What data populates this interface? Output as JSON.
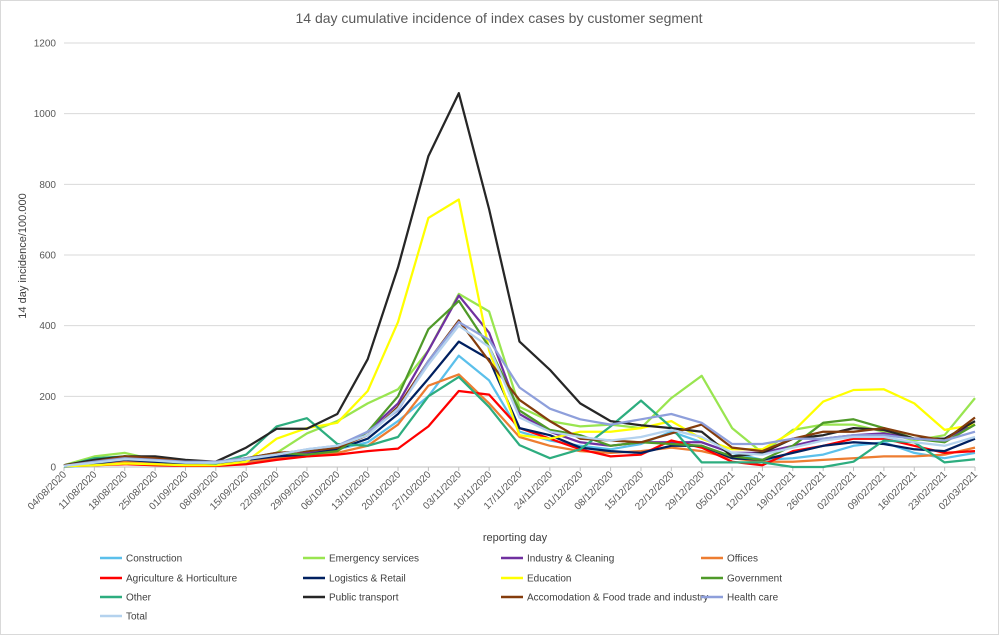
{
  "chart_data": {
    "type": "line",
    "title": "14 day cumulative incidence of index cases by customer segment",
    "xlabel": "reporting day",
    "ylabel": "14 day incidence/100.000",
    "ylim": [
      0,
      1200
    ],
    "yticks": [
      0,
      200,
      400,
      600,
      800,
      1000,
      1200
    ],
    "grid": true,
    "legend_position": "bottom",
    "categories": [
      "04/08/2020",
      "11/08/2020",
      "18/08/2020",
      "25/08/2020",
      "01/09/2020",
      "08/09/2020",
      "15/09/2020",
      "22/09/2020",
      "29/09/2020",
      "06/10/2020",
      "13/10/2020",
      "20/10/2020",
      "27/10/2020",
      "03/11/2020",
      "10/11/2020",
      "17/11/2020",
      "24/11/2020",
      "01/12/2020",
      "08/12/2020",
      "15/12/2020",
      "22/12/2020",
      "29/12/2020",
      "05/01/2021",
      "12/01/2021",
      "19/01/2021",
      "26/01/2021",
      "02/02/2021",
      "09/02/2021",
      "16/02/2021",
      "23/02/2021",
      "02/03/2021"
    ],
    "series": [
      {
        "name": "Construction",
        "color": "#5bc0eb",
        "values": [
          0,
          5,
          10,
          8,
          5,
          5,
          10,
          25,
          40,
          50,
          70,
          130,
          200,
          315,
          245,
          100,
          75,
          60,
          50,
          65,
          100,
          70,
          40,
          20,
          25,
          35,
          60,
          70,
          40,
          25,
          40
        ]
      },
      {
        "name": "Emergency services",
        "color": "#99e550",
        "values": [
          5,
          30,
          40,
          20,
          10,
          10,
          20,
          40,
          95,
          130,
          180,
          220,
          330,
          490,
          440,
          170,
          130,
          115,
          120,
          110,
          195,
          258,
          110,
          40,
          105,
          120,
          120,
          100,
          75,
          90,
          195
        ]
      },
      {
        "name": "Industry & Cleaning",
        "color": "#7030a0",
        "values": [
          5,
          10,
          20,
          15,
          10,
          10,
          20,
          30,
          40,
          50,
          100,
          180,
          330,
          485,
          380,
          150,
          100,
          70,
          60,
          70,
          70,
          70,
          40,
          40,
          60,
          80,
          90,
          95,
          80,
          80,
          120
        ]
      },
      {
        "name": "Offices",
        "color": "#ed7d31",
        "values": [
          3,
          8,
          15,
          10,
          8,
          8,
          15,
          25,
          30,
          40,
          60,
          120,
          230,
          262,
          180,
          85,
          60,
          45,
          40,
          45,
          55,
          45,
          25,
          15,
          15,
          20,
          25,
          30,
          30,
          35,
          55
        ]
      },
      {
        "name": "Agriculture & Horticulture",
        "color": "#ff0000",
        "values": [
          2,
          5,
          8,
          5,
          3,
          3,
          8,
          20,
          30,
          35,
          45,
          52,
          115,
          215,
          205,
          110,
          80,
          50,
          30,
          35,
          75,
          55,
          15,
          5,
          45,
          60,
          80,
          80,
          60,
          40,
          45
        ]
      },
      {
        "name": "Logistics & Retail",
        "color": "#002060",
        "values": [
          4,
          10,
          20,
          15,
          10,
          10,
          20,
          30,
          35,
          50,
          80,
          150,
          250,
          355,
          305,
          110,
          90,
          55,
          45,
          40,
          60,
          60,
          25,
          20,
          40,
          60,
          70,
          65,
          50,
          45,
          80
        ]
      },
      {
        "name": "Education",
        "color": "#ffff00",
        "values": [
          2,
          5,
          10,
          8,
          5,
          5,
          15,
          80,
          110,
          125,
          215,
          410,
          705,
          757,
          330,
          90,
          80,
          100,
          100,
          110,
          130,
          80,
          50,
          50,
          100,
          185,
          218,
          220,
          180,
          105,
          120
        ]
      },
      {
        "name": "Government",
        "color": "#4f9a29",
        "values": [
          4,
          15,
          30,
          20,
          15,
          15,
          25,
          40,
          35,
          45,
          100,
          200,
          390,
          470,
          340,
          160,
          105,
          90,
          60,
          70,
          65,
          60,
          30,
          20,
          60,
          125,
          135,
          110,
          80,
          70,
          120
        ]
      },
      {
        "name": "Other",
        "color": "#2dad7f",
        "values": [
          2,
          25,
          30,
          20,
          15,
          10,
          35,
          115,
          138,
          65,
          60,
          85,
          200,
          255,
          170,
          62,
          25,
          50,
          115,
          188,
          112,
          13,
          13,
          13,
          0,
          0,
          15,
          75,
          70,
          13,
          22
        ]
      },
      {
        "name": "Public transport",
        "color": "#262626",
        "values": [
          5,
          20,
          30,
          30,
          20,
          15,
          55,
          108,
          108,
          150,
          305,
          565,
          880,
          1058,
          730,
          355,
          275,
          180,
          130,
          118,
          110,
          100,
          30,
          40,
          80,
          90,
          110,
          105,
          80,
          80,
          130
        ]
      },
      {
        "name": "Accomodation & Food trade and industry",
        "color": "#843c0c",
        "values": [
          5,
          15,
          30,
          25,
          15,
          15,
          25,
          40,
          45,
          55,
          90,
          170,
          300,
          415,
          300,
          190,
          130,
          80,
          75,
          70,
          95,
          120,
          55,
          45,
          80,
          100,
          100,
          110,
          90,
          75,
          140
        ]
      },
      {
        "name": "Health care",
        "color": "#8e9fdb",
        "values": [
          3,
          15,
          25,
          20,
          15,
          15,
          25,
          35,
          50,
          60,
          100,
          160,
          300,
          410,
          360,
          225,
          165,
          135,
          120,
          135,
          150,
          125,
          65,
          65,
          80,
          80,
          90,
          90,
          80,
          75,
          100
        ]
      },
      {
        "name": "Total",
        "color": "#b4d2ee",
        "values": [
          3,
          12,
          22,
          18,
          12,
          12,
          22,
          35,
          50,
          60,
          90,
          165,
          290,
          400,
          340,
          140,
          100,
          85,
          75,
          85,
          105,
          85,
          40,
          35,
          55,
          75,
          85,
          85,
          70,
          60,
          85
        ]
      }
    ]
  }
}
